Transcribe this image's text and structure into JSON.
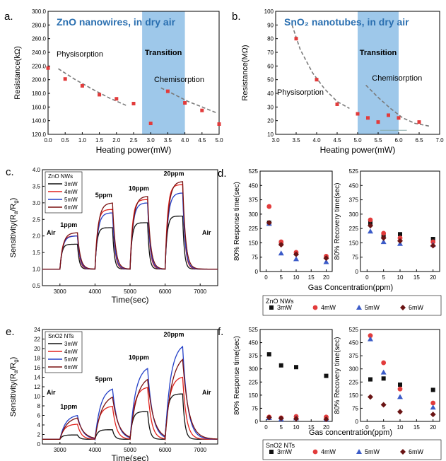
{
  "colors": {
    "red_marker": "#e23b3b",
    "dashed_fit": "#7a7a7a",
    "transition_band": "#9ec8ea",
    "series": [
      "#111111",
      "#e0231e",
      "#2440c8",
      "#7a1010"
    ],
    "legend_markers": [
      "#111111",
      "#e23b3b",
      "#3b5bc8",
      "#6a1414"
    ],
    "panel_title": "#2a6fb0"
  },
  "chart_data": [
    {
      "id": "a",
      "panel_label": "a.",
      "type": "scatter",
      "title": "ZnO nanowires, in dry air",
      "xlabel": "Heating power(mW)",
      "ylabel": "Resistance(kΩ)",
      "xlim": [
        0,
        5
      ],
      "ylim": [
        120,
        300
      ],
      "xticks": [
        "0.0",
        "0.5",
        "1.0",
        "1.5",
        "2.0",
        "2.5",
        "3.0",
        "3.5",
        "4.0",
        "4.5",
        "5.0"
      ],
      "yticks": [
        "120.0",
        "140.0",
        "160.0",
        "180.0",
        "200.0",
        "220.0",
        "240.0",
        "260.0",
        "280.0",
        "300.0"
      ],
      "band": [
        2.75,
        4.0
      ],
      "annotations": [
        "Physisorption",
        "Transition",
        "Chemisorption"
      ],
      "x": [
        0,
        0.5,
        1.0,
        1.5,
        2.0,
        2.5,
        3.0,
        3.5,
        4.0,
        4.5,
        5.0
      ],
      "y": [
        217,
        201,
        191,
        178,
        172,
        165,
        136,
        183,
        166,
        155,
        135
      ],
      "fits": [
        {
          "x": [
            0.3,
            0.8,
            1.3,
            1.8,
            2.3
          ],
          "y": [
            216,
            200,
            186,
            173,
            162
          ]
        },
        {
          "x": [
            3.3,
            3.7,
            4.1,
            4.5,
            4.9
          ],
          "y": [
            188,
            178,
            168,
            160,
            152
          ]
        }
      ]
    },
    {
      "id": "b",
      "panel_label": "b.",
      "type": "scatter",
      "title": "SnO₂ nanotubes, in dry air",
      "xlabel": "Heating power(mW)",
      "ylabel": "Resistance(MΩ)",
      "xlim": [
        3,
        7
      ],
      "ylim": [
        10,
        100
      ],
      "xticks": [
        "3.0",
        "3.5",
        "4.0",
        "4.5",
        "5.0",
        "5.5",
        "6.0",
        "6.5",
        "7.0"
      ],
      "yticks": [
        "10",
        "20",
        "30",
        "40",
        "50",
        "60",
        "70",
        "80",
        "90",
        "100"
      ],
      "band": [
        5.0,
        6.0
      ],
      "annotations": [
        "Physisorption",
        "Transition",
        "Chemisorption"
      ],
      "x": [
        3.5,
        4.0,
        4.5,
        5.0,
        5.25,
        5.5,
        5.75,
        6.0,
        6.5
      ],
      "y": [
        80,
        50,
        32,
        25,
        22,
        19,
        24,
        22,
        19
      ],
      "fits": [
        {
          "x": [
            3.4,
            3.6,
            3.9,
            4.2,
            4.5,
            4.8
          ],
          "y": [
            90,
            72,
            55,
            43,
            34,
            29
          ]
        },
        {
          "x": [
            5.2,
            5.5,
            5.8,
            6.1,
            6.4,
            6.75
          ],
          "y": [
            46,
            37,
            29,
            22,
            18,
            16
          ]
        }
      ]
    },
    {
      "id": "c",
      "panel_label": "c.",
      "type": "line",
      "xlabel": "Time(sec)",
      "ylabel": "Sensitivity(Ra/Rg)",
      "ylabel_main": "Sensitivity(R",
      "ylabel_sub1": "a",
      "ylabel_mid": "/R",
      "ylabel_sub2": "g",
      "ylabel_end": ")",
      "xlim": [
        2500,
        7500
      ],
      "ylim": [
        0.5,
        4.0
      ],
      "xticks": [
        "3000",
        "4000",
        "5000",
        "6000",
        "7000"
      ],
      "yticks": [
        "0.5",
        "1.0",
        "1.5",
        "2.0",
        "2.5",
        "3.0",
        "3.5",
        "4.0"
      ],
      "legend_title": "ZnO NWs",
      "pulses": [
        [
          3000,
          3500
        ],
        [
          4000,
          4500
        ],
        [
          5000,
          5500
        ],
        [
          6000,
          6500
        ]
      ],
      "annotations": [
        "Air",
        "1ppm",
        "5ppm",
        "10ppm",
        "20ppm",
        "Air"
      ],
      "series": [
        {
          "name": "3mW",
          "peaks": [
            1.75,
            2.25,
            2.4,
            2.6
          ]
        },
        {
          "name": "4mW",
          "peaks": [
            2.0,
            2.8,
            3.1,
            3.55
          ]
        },
        {
          "name": "5mW",
          "peaks": [
            2.0,
            2.7,
            3.0,
            3.3
          ]
        },
        {
          "name": "6mW",
          "peaks": [
            2.1,
            3.0,
            3.2,
            3.65
          ]
        }
      ]
    },
    {
      "id": "d1",
      "panel_label": "d.",
      "type": "scatter",
      "ylabel": "80% Response time(sec)",
      "xlim": [
        -2,
        22
      ],
      "ylim": [
        0,
        525
      ],
      "xticks": [
        "0",
        "5",
        "10",
        "15",
        "20"
      ],
      "yticks": [
        "0",
        "75",
        "150",
        "225",
        "300",
        "375",
        "450",
        "525"
      ],
      "x": [
        1,
        5,
        10,
        20
      ],
      "series": [
        {
          "name": "3mW",
          "values": [
            255,
            150,
            95,
            75
          ]
        },
        {
          "name": "4mW",
          "values": [
            340,
            155,
            100,
            80
          ]
        },
        {
          "name": "5mW",
          "values": [
            250,
            95,
            65,
            50
          ]
        },
        {
          "name": "6mW",
          "values": [
            255,
            140,
            90,
            70
          ]
        }
      ]
    },
    {
      "id": "d2",
      "type": "scatter",
      "ylabel": "80% Recovery time(sec)",
      "xlim": [
        -2,
        22
      ],
      "ylim": [
        0,
        525
      ],
      "xticks": [
        "0",
        "5",
        "10",
        "15",
        "20"
      ],
      "yticks": [
        "0",
        "75",
        "150",
        "225",
        "300",
        "375",
        "450",
        "525"
      ],
      "x": [
        1,
        5,
        10,
        20
      ],
      "series": [
        {
          "name": "3mW",
          "values": [
            255,
            190,
            195,
            170
          ]
        },
        {
          "name": "4mW",
          "values": [
            270,
            200,
            175,
            155
          ]
        },
        {
          "name": "5mW",
          "values": [
            210,
            155,
            145,
            140
          ]
        },
        {
          "name": "6mW",
          "values": [
            240,
            175,
            160,
            135
          ]
        }
      ],
      "shared_xlabel": "Gas Concentration(ppm)",
      "legend_title": "ZnO NWs"
    },
    {
      "id": "e",
      "panel_label": "e.",
      "type": "line",
      "xlabel": "Time(sec)",
      "ylabel": "Sensitivity(Ra/Rg)",
      "ylabel_main": "Sensitivity(R",
      "ylabel_sub1": "a",
      "ylabel_mid": "/R",
      "ylabel_sub2": "g",
      "ylabel_end": ")",
      "xlim": [
        2500,
        7500
      ],
      "ylim": [
        0,
        24
      ],
      "xticks": [
        "3000",
        "4000",
        "5000",
        "6000",
        "7000"
      ],
      "yticks": [
        "0",
        "2",
        "4",
        "6",
        "8",
        "10",
        "12",
        "14",
        "16",
        "18",
        "20",
        "22",
        "24"
      ],
      "legend_title": "SnO2 NTs",
      "pulses": [
        [
          3000,
          3500
        ],
        [
          4000,
          4500
        ],
        [
          5000,
          5500
        ],
        [
          6000,
          6500
        ]
      ],
      "annotations": [
        "Air",
        "1ppm",
        "5ppm",
        "10ppm",
        "20ppm",
        "Air"
      ],
      "series": [
        {
          "name": "3mW",
          "peaks": [
            1.9,
            3.0,
            6.8,
            10.5
          ]
        },
        {
          "name": "4mW",
          "peaks": [
            4.2,
            8.0,
            12.0,
            14.2
          ]
        },
        {
          "name": "5mW",
          "peaks": [
            6.2,
            12.0,
            16.5,
            21.3
          ]
        },
        {
          "name": "6mW",
          "peaks": [
            5.8,
            10.5,
            14.5,
            19.0
          ]
        }
      ]
    },
    {
      "id": "f1",
      "panel_label": "f.",
      "type": "scatter",
      "ylabel": "80% Response time(sec)",
      "xlim": [
        -2,
        22
      ],
      "ylim": [
        0,
        525
      ],
      "xticks": [
        "0",
        "5",
        "10",
        "15",
        "20"
      ],
      "yticks": [
        "0",
        "75",
        "150",
        "225",
        "300",
        "375",
        "450",
        "525"
      ],
      "x": [
        1,
        5,
        10,
        20
      ],
      "series": [
        {
          "name": "3mW",
          "values": [
            383,
            320,
            310,
            260
          ]
        },
        {
          "name": "4mW",
          "values": [
            25,
            20,
            28,
            25
          ]
        },
        {
          "name": "5mW",
          "values": [
            20,
            12,
            18,
            12
          ]
        },
        {
          "name": "6mW",
          "values": [
            22,
            18,
            15,
            12
          ]
        }
      ]
    },
    {
      "id": "f2",
      "type": "scatter",
      "ylabel": "80% Recovery time(sec)",
      "xlim": [
        -2,
        22
      ],
      "ylim": [
        0,
        525
      ],
      "xticks": [
        "0",
        "5",
        "10",
        "15",
        "20"
      ],
      "yticks": [
        "0",
        "75",
        "150",
        "225",
        "300",
        "375",
        "450",
        "525"
      ],
      "x": [
        1,
        5,
        10,
        20
      ],
      "series": [
        {
          "name": "3mW",
          "values": [
            240,
            245,
            210,
            180
          ]
        },
        {
          "name": "4mW",
          "values": [
            490,
            335,
            185,
            105
          ]
        },
        {
          "name": "5mW",
          "values": [
            470,
            280,
            140,
            80
          ]
        },
        {
          "name": "6mW",
          "values": [
            140,
            95,
            55,
            40
          ]
        }
      ],
      "shared_xlabel": "Gas concentration(ppm)",
      "legend_title": "SnO2 NTs"
    }
  ]
}
